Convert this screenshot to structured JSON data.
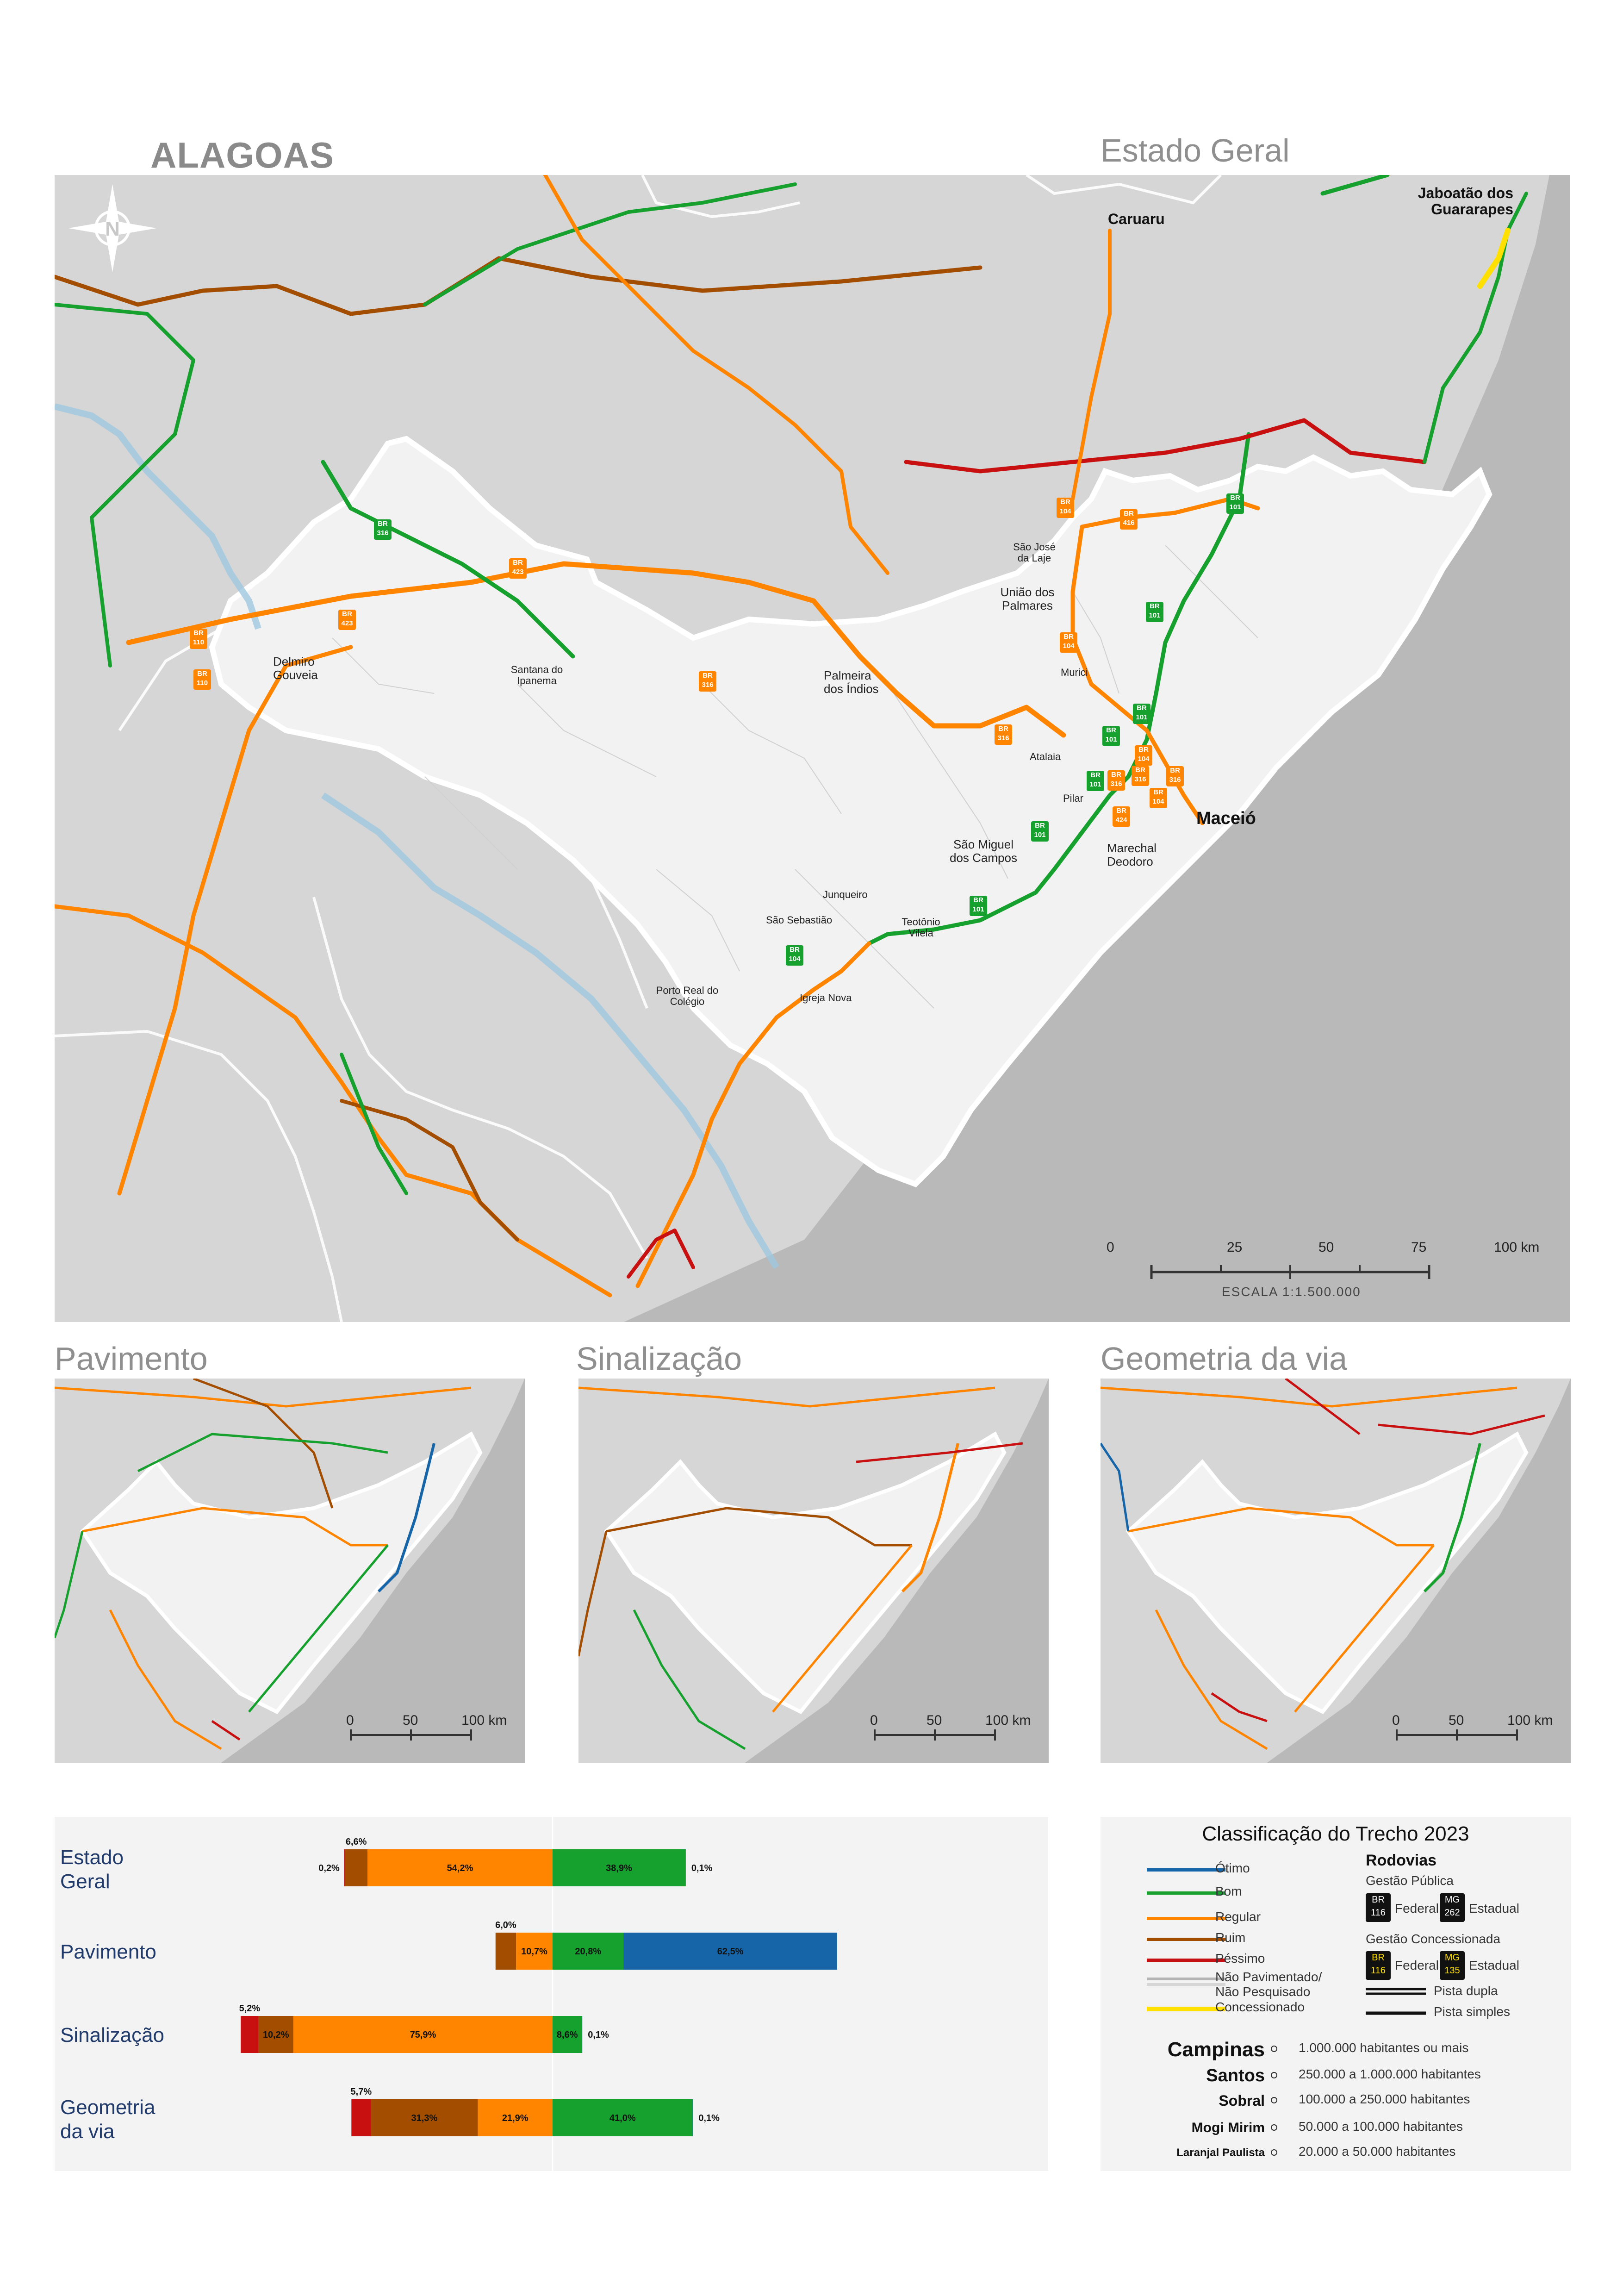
{
  "header": {
    "state": "ALAGOAS",
    "main_title": "Estado Geral"
  },
  "main_map": {
    "cities": [
      {
        "name": "Caruaru"
      },
      {
        "name": "Jaboatão dos Guararapes"
      },
      {
        "name": "São José da Laje"
      },
      {
        "name": "União dos Palmares"
      },
      {
        "name": "Murici"
      },
      {
        "name": "Delmiro Gouveia"
      },
      {
        "name": "Santana do Ipanema"
      },
      {
        "name": "Palmeira dos Índios"
      },
      {
        "name": "Atalaia"
      },
      {
        "name": "Pilar"
      },
      {
        "name": "Maceió"
      },
      {
        "name": "São Miguel dos Campos"
      },
      {
        "name": "Marechal Deodoro"
      },
      {
        "name": "Junqueiro"
      },
      {
        "name": "São Sebastião"
      },
      {
        "name": "Teotônio Vilela"
      },
      {
        "name": "Porto Real do Colégio"
      },
      {
        "name": "Igreja Nova"
      }
    ],
    "shields": [
      "BR 316",
      "BR 423",
      "BR 423",
      "BR 110",
      "BR 110",
      "BR 316",
      "BR 104",
      "BR 416",
      "BR 101",
      "BR 104",
      "BR 101",
      "BR 101",
      "BR 316",
      "BR 101",
      "BR 104",
      "BR 316",
      "BR 316",
      "BR 316",
      "BR 104",
      "BR 424",
      "BR 101",
      "BR 101",
      "BR 101",
      "BR 104"
    ],
    "scale": {
      "ticks": [
        "0",
        "25",
        "50",
        "75",
        "100 km"
      ],
      "label": "ESCALA 1:1.500.000"
    }
  },
  "small_maps": [
    {
      "title": "Pavimento",
      "ticks": [
        "0",
        "50",
        "100 km"
      ]
    },
    {
      "title": "Sinalização",
      "ticks": [
        "0",
        "50",
        "100 km"
      ]
    },
    {
      "title": "Geometria da via",
      "ticks": [
        "0",
        "50",
        "100 km"
      ]
    }
  ],
  "chart_data": {
    "type": "bar",
    "orientation": "horizontal-diverging",
    "categories": [
      "Estado Geral",
      "Pavimento",
      "Sinalização",
      "Geometria da via"
    ],
    "category_lines": [
      [
        "Estado",
        "Geral"
      ],
      [
        "Pavimento"
      ],
      [
        "Sinalização"
      ],
      [
        "Geometria",
        "da via"
      ]
    ],
    "colors": {
      "Ótimo": "#1565a8",
      "Bom": "#16a02e",
      "Regular": "#ff8400",
      "Ruim": "#a34d00",
      "Péssimo": "#c81010"
    },
    "series": [
      {
        "name": "Péssimo",
        "values": [
          0.2,
          0,
          5.2,
          5.7
        ]
      },
      {
        "name": "Ruim",
        "values": [
          6.6,
          6.0,
          10.2,
          31.3
        ]
      },
      {
        "name": "Regular",
        "values": [
          54.2,
          10.7,
          75.9,
          21.9
        ]
      },
      {
        "name": "Bom",
        "values": [
          38.9,
          20.8,
          8.6,
          41.0
        ]
      },
      {
        "name": "Ótimo",
        "values": [
          0.1,
          62.5,
          0.1,
          0.1
        ]
      }
    ],
    "labels": [
      [
        "0,2%",
        "6,6%",
        "54,2%",
        "38,9%",
        "0,1%"
      ],
      [
        "",
        "6,0%",
        "10,7%",
        "20,8%",
        "62,5%"
      ],
      [
        "5,2%",
        "10,2%",
        "75,9%",
        "8,6%",
        "0,1%"
      ],
      [
        "5,7%",
        "31,3%",
        "21,9%",
        "41,0%",
        "0,1%"
      ]
    ]
  },
  "legend": {
    "title": "Classificação do Trecho 2023",
    "classes": [
      {
        "label": "Ótimo",
        "color": "#1565a8"
      },
      {
        "label": "Bom",
        "color": "#16a02e"
      },
      {
        "label": "Regular",
        "color": "#ff8400"
      },
      {
        "label": "Ruim",
        "color": "#a34d00"
      },
      {
        "label": "Péssimo",
        "color": "#c81010"
      }
    ],
    "unpaved": "Não Pavimentado/",
    "unpaved2": "Não Pesquisado",
    "concession": "Concessionado",
    "rodovias": "Rodovias",
    "public_mgmt": "Gestão Pública",
    "concession_mgmt": "Gestão Concessionada",
    "federal": "Federal",
    "estadual": "Estadual",
    "br_code": "BR",
    "br_num": "116",
    "mg_code": "MG",
    "mg_num_public": "262",
    "mg_num_conc": "135",
    "dual": "Pista dupla",
    "single": "Pista simples",
    "pop": [
      {
        "city": "Campinas",
        "range": "1.000.000 habitantes ou mais"
      },
      {
        "city": "Santos",
        "range": "250.000 a 1.000.000 habitantes"
      },
      {
        "city": "Sobral",
        "range": "100.000 a 250.000 habitantes"
      },
      {
        "city": "Mogi Mirim",
        "range": "50.000 a 100.000 habitantes"
      },
      {
        "city": "Laranjal Paulista",
        "range": "20.000 a 50.000 habitantes"
      }
    ]
  }
}
